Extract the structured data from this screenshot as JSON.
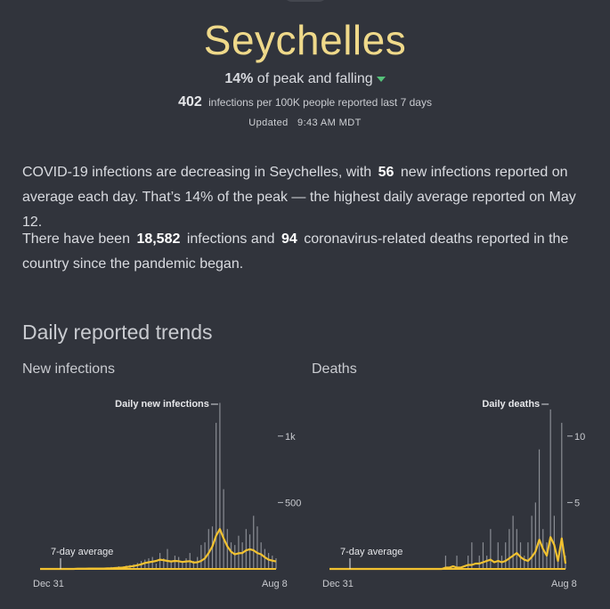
{
  "header": {
    "title": "Seychelles",
    "peak_percent": "14%",
    "peak_text": "of peak and falling",
    "infections_per_100k": "402",
    "infections_per_100k_text": "infections per 100K people reported last 7 days",
    "updated_label": "Updated",
    "updated_time": "9:43 AM MDT",
    "trend_color": "#55c27a"
  },
  "summary": {
    "p1_a": "COVID-19 infections are decreasing in Seychelles, with",
    "p1_num": "56",
    "p1_b": "new infections reported on average each day. That’s 14% of the peak — the highest daily average reported on May 12.",
    "p2_a": "There have been",
    "p2_infections": "18,582",
    "p2_b": "infections and",
    "p2_deaths": "94",
    "p2_c": "coronavirus-related deaths reported in the country since the pandemic began."
  },
  "trends": {
    "section_title": "Daily reported trends",
    "infections_title": "New infections",
    "deaths_title": "Deaths"
  },
  "chart_data": [
    {
      "type": "line",
      "title": "New infections",
      "daily_label": "Daily new infections",
      "avg_label": "7-day average",
      "x_start": "Dec 31",
      "x_end": "Aug 8",
      "yticks": [
        500,
        1000
      ],
      "ytick_labels": [
        "500",
        "1k"
      ],
      "ylim": [
        0,
        1300
      ],
      "bar_color": "#8a8d94",
      "line_color": "#f2c230",
      "series": [
        {
          "name": "7-day average",
          "values": [
            0,
            0,
            0,
            0,
            0,
            0,
            0,
            0,
            0,
            0,
            2,
            2,
            2,
            3,
            3,
            3,
            3,
            3,
            4,
            5,
            7,
            9,
            10,
            14,
            18,
            22,
            28,
            35,
            45,
            50,
            55,
            60,
            70,
            66,
            60,
            56,
            60,
            58,
            52,
            56,
            58,
            48,
            50,
            60,
            80,
            120,
            170,
            250,
            300,
            230,
            170,
            130,
            110,
            118,
            120,
            140,
            148,
            140,
            120,
            110,
            88,
            70,
            62,
            56
          ]
        }
      ],
      "daily_values": [
        0,
        0,
        0,
        0,
        0,
        0,
        0,
        0,
        0,
        0,
        4,
        0,
        5,
        0,
        6,
        8,
        0,
        5,
        10,
        15,
        12,
        20,
        8,
        25,
        30,
        35,
        45,
        60,
        70,
        80,
        90,
        40,
        120,
        80,
        150,
        60,
        100,
        90,
        60,
        80,
        120,
        60,
        90,
        180,
        200,
        300,
        320,
        1100,
        1250,
        600,
        300,
        200,
        180,
        250,
        200,
        300,
        260,
        400,
        320,
        200,
        150,
        120,
        100,
        80
      ]
    },
    {
      "type": "line",
      "title": "Deaths",
      "daily_label": "Daily deaths",
      "avg_label": "7-day average",
      "x_start": "Dec 31",
      "x_end": "Aug 8",
      "yticks": [
        5,
        10
      ],
      "ytick_labels": [
        "5",
        "10"
      ],
      "ylim": [
        0,
        13
      ],
      "bar_color": "#8a8d94",
      "line_color": "#f2c230",
      "series": [
        {
          "name": "7-day average",
          "values": [
            0,
            0,
            0,
            0,
            0,
            0,
            0,
            0,
            0,
            0,
            0,
            0,
            0,
            0,
            0,
            0,
            0,
            0,
            0,
            0,
            0,
            0,
            0,
            0,
            0,
            0,
            0,
            0,
            0,
            0,
            0,
            0.1,
            0.1,
            0.2,
            0.1,
            0.1,
            0.2,
            0.3,
            0.3,
            0.4,
            0.4,
            0.5,
            0.6,
            0.7,
            0.5,
            0.6,
            0.5,
            0.6,
            0.8,
            1,
            1.2,
            0.9,
            0.7,
            0.6,
            0.9,
            1.3,
            2.2,
            1.5,
            1.0,
            2.4,
            1.8,
            0.6,
            2.3,
            0.4
          ]
        }
      ],
      "daily_values": [
        0,
        0,
        0,
        0,
        0,
        0,
        0,
        0,
        0,
        0,
        0,
        0,
        0,
        0,
        0,
        0,
        0,
        0,
        0,
        0,
        0,
        0,
        0,
        0,
        0,
        0,
        0,
        0,
        0,
        0,
        0,
        1,
        0,
        0,
        1,
        0,
        0,
        1,
        2,
        0,
        1,
        2,
        1,
        3,
        0,
        2,
        1,
        2,
        3,
        4,
        3,
        2,
        1,
        2,
        4,
        5,
        9,
        3,
        2,
        12,
        4,
        1,
        11,
        1
      ]
    }
  ]
}
